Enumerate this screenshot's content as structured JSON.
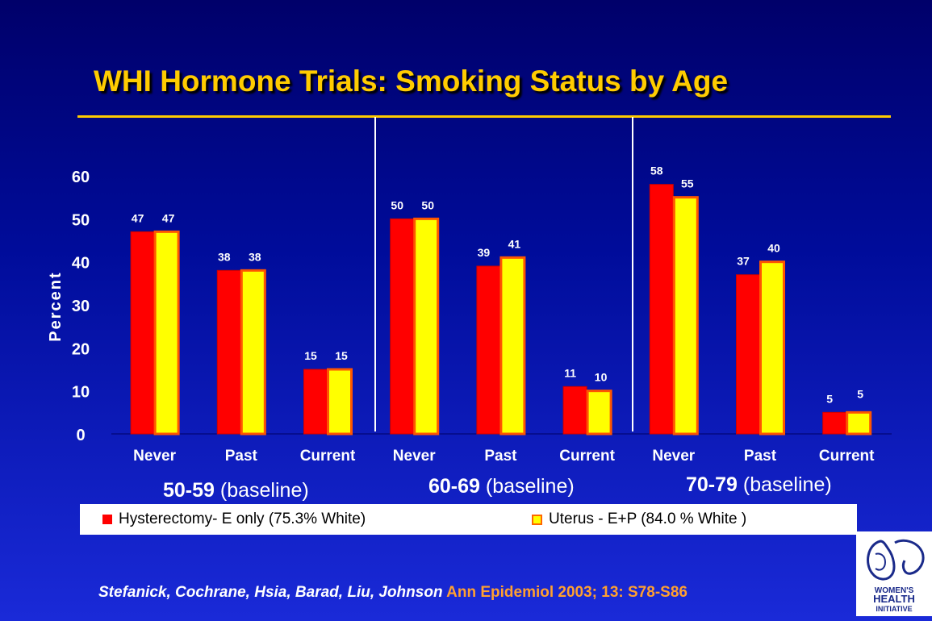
{
  "title": "WHI Hormone Trials: Smoking Status by Age",
  "chart_data": {
    "type": "bar",
    "ylabel": "Percent",
    "ylim": [
      0,
      60
    ],
    "yticks": [
      0,
      10,
      20,
      30,
      40,
      50,
      60
    ],
    "groups": [
      {
        "label_bold": "50-59",
        "label_rest": " (baseline)",
        "categories": [
          "Never",
          "Past",
          "Current"
        ]
      },
      {
        "label_bold": "60-69",
        "label_rest": " (baseline)",
        "categories": [
          "Never",
          "Past",
          "Current"
        ]
      },
      {
        "label_bold": "70-79",
        "label_rest": " (baseline)",
        "categories": [
          "Never",
          "Past",
          "Current"
        ]
      }
    ],
    "categories": [
      "Never",
      "Past",
      "Current",
      "Never",
      "Past",
      "Current",
      "Never",
      "Past",
      "Current"
    ],
    "series": [
      {
        "name": "Hysterectomy- E only (75.3% White)",
        "color": "#ff0000",
        "values": [
          47,
          38,
          15,
          50,
          39,
          11,
          58,
          37,
          5
        ]
      },
      {
        "name": "Uterus - E+P (84.0 % White )",
        "color": "#ffff00",
        "values": [
          47,
          38,
          15,
          50,
          41,
          10,
          55,
          40,
          5
        ]
      }
    ],
    "legend_position": "bottom",
    "grid": false
  },
  "citation": {
    "authors": "Stefanick, Cochrane, Hsia, Barad, Liu, Johnson",
    "journal": " Ann Epidemiol 2003; 13: S78-S86"
  },
  "logo": {
    "text_line1": "WOMEN'S",
    "text_line2": "HEALTH",
    "text_line3": "INITIATIVE"
  }
}
